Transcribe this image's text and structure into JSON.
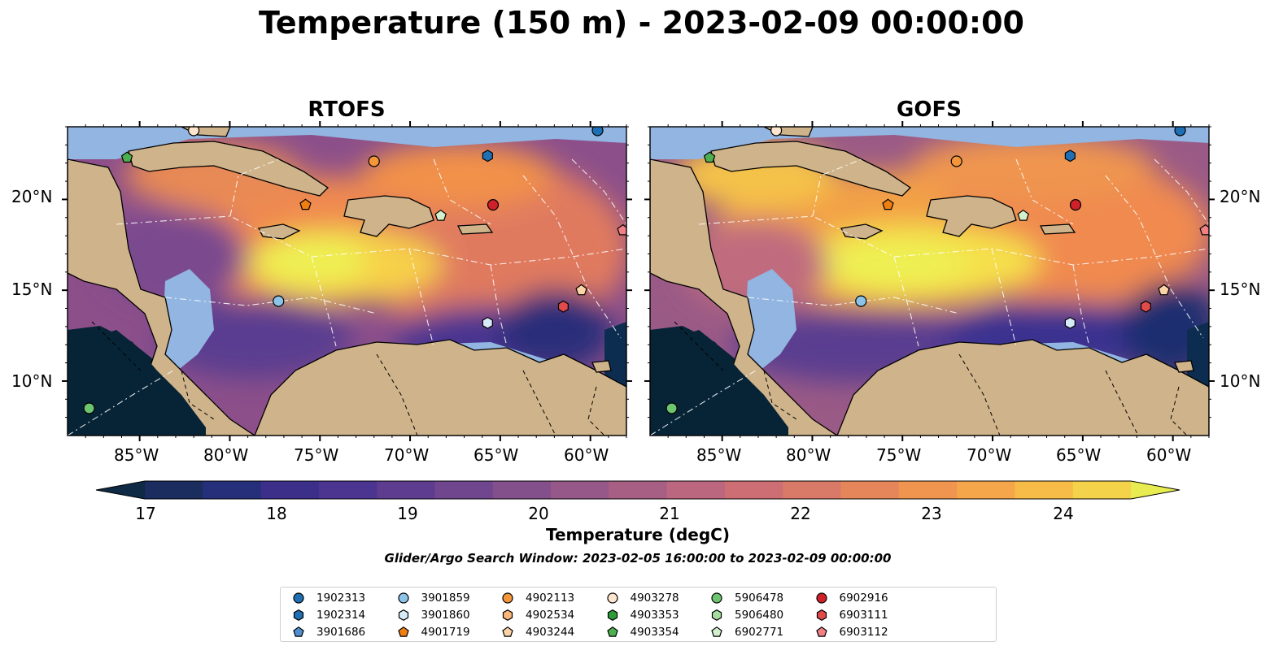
{
  "title": "Temperature (150 m) - 2023-02-09 00:00:00",
  "panels": [
    {
      "title": "RTOFS"
    },
    {
      "title": "GOFS"
    }
  ],
  "axes": {
    "lon_ticks": [
      "85°W",
      "80°W",
      "75°W",
      "70°W",
      "65°W",
      "60°W"
    ],
    "lat_ticks": [
      "20°N",
      "15°N",
      "10°N"
    ],
    "lon_range": [
      -89,
      -58
    ],
    "lat_range": [
      7,
      24
    ]
  },
  "colorbar": {
    "label": "Temperature (degC)",
    "ticks": [
      "17",
      "18",
      "19",
      "20",
      "21",
      "22",
      "23",
      "24"
    ],
    "range": [
      16.5,
      25
    ],
    "colors": [
      "#0e2a44",
      "#1a2d5e",
      "#252f7a",
      "#3b2f8a",
      "#4c3590",
      "#5e3c8f",
      "#70478f",
      "#83508c",
      "#965888",
      "#a85f84",
      "#bb677f",
      "#cc6e74",
      "#d97968",
      "#e5865a",
      "#ef9550",
      "#f5a64a",
      "#f7bb48",
      "#f4d24a",
      "#e9ec50"
    ]
  },
  "search_window": "Glider/Argo Search Window: 2023-02-05 16:00:00 to 2023-02-09 00:00:00",
  "colors": {
    "land": "#cfb38a",
    "shelf": "#92b5e1",
    "deep": "#072436"
  },
  "legend": [
    {
      "id": "1902313",
      "marker": "circle",
      "color": "#1f6fb4"
    },
    {
      "id": "1902314",
      "marker": "hexagon",
      "color": "#1f6fb4"
    },
    {
      "id": "3901686",
      "marker": "pentagon",
      "color": "#4f8fd0"
    },
    {
      "id": "3901859",
      "marker": "circle",
      "color": "#8cc3e8"
    },
    {
      "id": "3901860",
      "marker": "hexagon",
      "color": "#d6eaf8"
    },
    {
      "id": "4901719",
      "marker": "pentagon",
      "color": "#f07f12"
    },
    {
      "id": "4902113",
      "marker": "circle",
      "color": "#f5963a"
    },
    {
      "id": "4902534",
      "marker": "hexagon",
      "color": "#f9b77a"
    },
    {
      "id": "4903244",
      "marker": "pentagon",
      "color": "#fbd3a6"
    },
    {
      "id": "4903278",
      "marker": "circle",
      "color": "#fde6cd"
    },
    {
      "id": "4903353",
      "marker": "hexagon",
      "color": "#2e9b3a"
    },
    {
      "id": "4903354",
      "marker": "pentagon",
      "color": "#4cb050"
    },
    {
      "id": "5906478",
      "marker": "circle",
      "color": "#6dc56f"
    },
    {
      "id": "5906480",
      "marker": "hexagon",
      "color": "#a6dea0"
    },
    {
      "id": "6902771",
      "marker": "pentagon",
      "color": "#d2f0cc"
    },
    {
      "id": "6902916",
      "marker": "circle",
      "color": "#d0212a"
    },
    {
      "id": "6903111",
      "marker": "hexagon",
      "color": "#e04a4a"
    },
    {
      "id": "6903112",
      "marker": "pentagon",
      "color": "#f07f86"
    }
  ],
  "floats": [
    {
      "id": "4903278",
      "lon": -82.0,
      "lat": 23.8
    },
    {
      "id": "5906478",
      "lon": -87.8,
      "lat": 8.5
    },
    {
      "id": "4903354",
      "lon": -85.7,
      "lat": 22.3
    },
    {
      "id": "4902113",
      "lon": -72.0,
      "lat": 22.1
    },
    {
      "id": "4901719",
      "lon": -75.8,
      "lat": 19.7
    },
    {
      "id": "3901859",
      "lon": -77.3,
      "lat": 14.4
    },
    {
      "id": "6902771",
      "lon": -68.3,
      "lat": 19.1
    },
    {
      "id": "1902314",
      "lon": -65.7,
      "lat": 22.4
    },
    {
      "id": "6902916",
      "lon": -65.4,
      "lat": 19.7
    },
    {
      "id": "1902313",
      "lon": -59.6,
      "lat": 23.8
    },
    {
      "id": "3901860",
      "lon": -65.7,
      "lat": 13.2
    },
    {
      "id": "6903112",
      "lon": -58.2,
      "lat": 18.3
    },
    {
      "id": "4903244",
      "lon": -60.5,
      "lat": 15.0
    },
    {
      "id": "6903111",
      "lon": -61.5,
      "lat": 14.1
    }
  ]
}
